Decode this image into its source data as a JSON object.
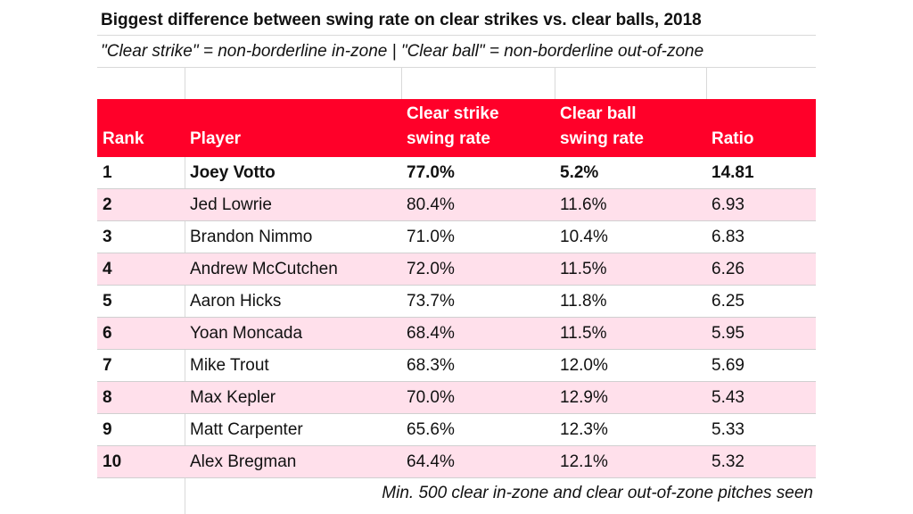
{
  "title": "Biggest difference between swing rate on clear strikes vs. clear balls, 2018",
  "subtitle": "\"Clear strike\" = non-borderline in-zone | \"Clear ball\" = non-borderline out-of-zone",
  "columns": {
    "rank": "Rank",
    "player": "Player",
    "strike": "Clear strike\nswing rate",
    "ball": "Clear ball\nswing rate",
    "ratio": "Ratio"
  },
  "rows": [
    {
      "rank": "1",
      "player": "Joey Votto",
      "strike": "77.0%",
      "ball": "5.2%",
      "ratio": "14.81"
    },
    {
      "rank": "2",
      "player": "Jed Lowrie",
      "strike": "80.4%",
      "ball": "11.6%",
      "ratio": "6.93"
    },
    {
      "rank": "3",
      "player": "Brandon Nimmo",
      "strike": "71.0%",
      "ball": "10.4%",
      "ratio": "6.83"
    },
    {
      "rank": "4",
      "player": "Andrew McCutchen",
      "strike": "72.0%",
      "ball": "11.5%",
      "ratio": "6.26"
    },
    {
      "rank": "5",
      "player": "Aaron Hicks",
      "strike": "73.7%",
      "ball": "11.8%",
      "ratio": "6.25"
    },
    {
      "rank": "6",
      "player": "Yoan Moncada",
      "strike": "68.4%",
      "ball": "11.5%",
      "ratio": "5.95"
    },
    {
      "rank": "7",
      "player": "Mike Trout",
      "strike": "68.3%",
      "ball": "12.0%",
      "ratio": "5.69"
    },
    {
      "rank": "8",
      "player": "Max Kepler",
      "strike": "70.0%",
      "ball": "12.9%",
      "ratio": "5.43"
    },
    {
      "rank": "9",
      "player": "Matt Carpenter",
      "strike": "65.6%",
      "ball": "12.3%",
      "ratio": "5.33"
    },
    {
      "rank": "10",
      "player": "Alex Bregman",
      "strike": "64.4%",
      "ball": "12.1%",
      "ratio": "5.32"
    }
  ],
  "footnote": "Min. 500 clear in-zone and clear out-of-zone pitches seen",
  "colors": {
    "header_bg": "#ff0029",
    "header_text": "#ffffff",
    "alt_row_bg": "#ffe0eb"
  }
}
